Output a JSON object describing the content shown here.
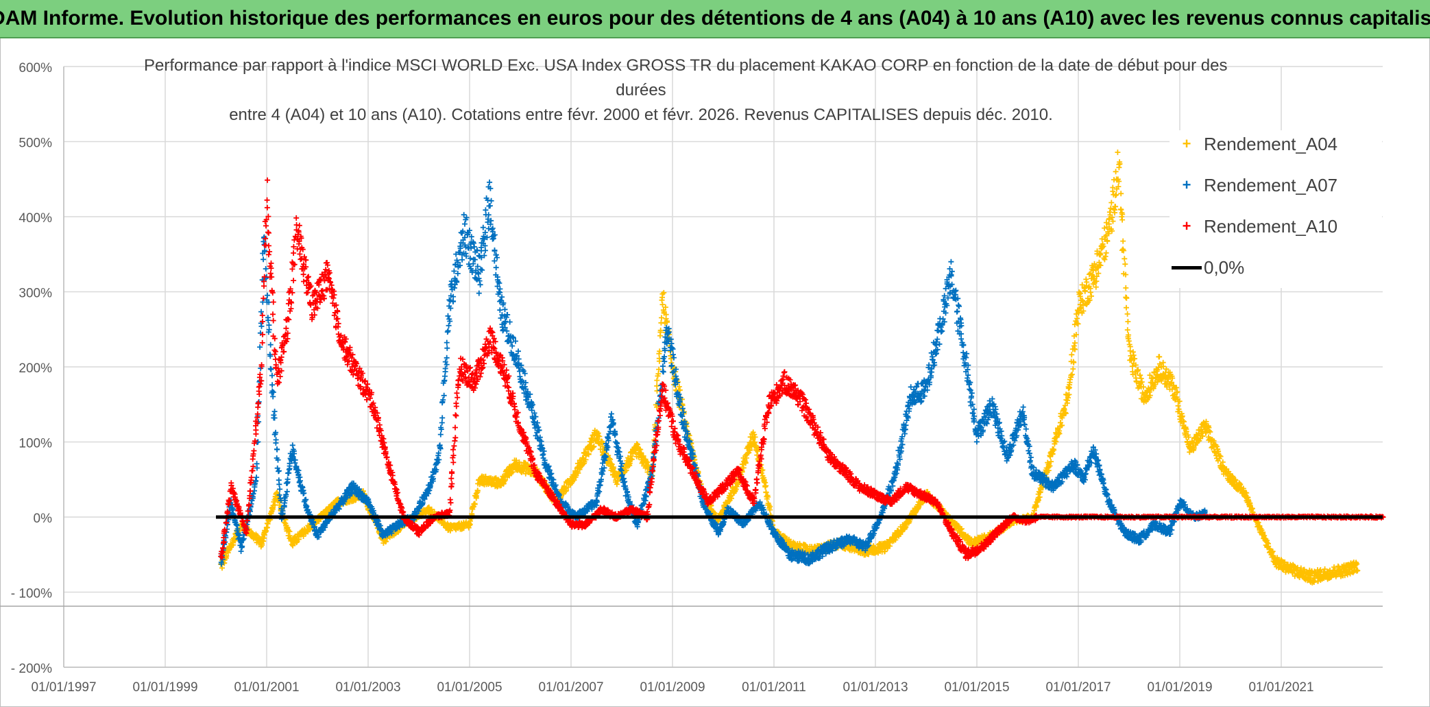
{
  "banner": {
    "title": "ADAM Informe. Evolution historique des performances en euros pour des détentions de 4 ans (A04) à 10 ans (A10) avec les revenus connus capitalisés"
  },
  "colors": {
    "banner_bg": "#7ccf7f",
    "a04": "#ffc000",
    "a07": "#0070c0",
    "a10": "#ff0000",
    "zero": "#000000",
    "grid": "#d9d9d9"
  },
  "chart_data": {
    "type": "scatter",
    "title_lines": [
      "Performance par rapport à l'indice MSCI WORLD Exc. USA Index GROSS TR  du placement KAKAO CORP en fonction de la date de début pour des",
      "durées",
      "entre 4 (A04) et 10 ans (A10). Cotations entre févr. 2000 et févr. 2026. Revenus CAPITALISES depuis déc. 2010."
    ],
    "x_tick_labels": [
      "01/01/1997",
      "01/01/1999",
      "01/01/2001",
      "01/01/2003",
      "01/01/2005",
      "01/01/2007",
      "01/01/2009",
      "01/01/2011",
      "01/01/2013",
      "01/01/2015",
      "01/01/2017",
      "01/01/2019",
      "01/01/2021"
    ],
    "x_range": [
      1997.0,
      2023.0
    ],
    "y_tick_labels": [
      "600%",
      "500%",
      "400%",
      "300%",
      "200%",
      "100%",
      "0%",
      "- 100%",
      "- 200%"
    ],
    "ylim": [
      -200,
      600
    ],
    "legend": [
      {
        "name": "Rendement_A04",
        "marker": "+"
      },
      {
        "name": "Rendement_A07",
        "marker": "+"
      },
      {
        "name": "Rendement_A10",
        "marker": "+"
      },
      {
        "name": "0,0%",
        "marker": "line"
      }
    ],
    "zero_line": {
      "label": "0,0%",
      "x_start": 2000.0,
      "x_end": 2023.0,
      "value": 0
    },
    "series": [
      {
        "name": "Rendement_A04",
        "anchors": [
          [
            2000.1,
            -65
          ],
          [
            2000.5,
            -10
          ],
          [
            2000.9,
            -35
          ],
          [
            2001.2,
            30
          ],
          [
            2001.5,
            -35
          ],
          [
            2001.9,
            -10
          ],
          [
            2002.4,
            20
          ],
          [
            2002.9,
            30
          ],
          [
            2003.3,
            -30
          ],
          [
            2003.8,
            -5
          ],
          [
            2004.2,
            10
          ],
          [
            2004.6,
            -15
          ],
          [
            2005.0,
            -10
          ],
          [
            2005.2,
            50
          ],
          [
            2005.6,
            45
          ],
          [
            2005.9,
            70
          ],
          [
            2006.3,
            60
          ],
          [
            2006.7,
            20
          ],
          [
            2007.1,
            60
          ],
          [
            2007.5,
            110
          ],
          [
            2007.9,
            50
          ],
          [
            2008.3,
            90
          ],
          [
            2008.6,
            55
          ],
          [
            2008.8,
            290
          ],
          [
            2009.0,
            200
          ],
          [
            2009.3,
            110
          ],
          [
            2009.6,
            30
          ],
          [
            2009.9,
            -5
          ],
          [
            2010.3,
            50
          ],
          [
            2010.6,
            110
          ],
          [
            2010.8,
            50
          ],
          [
            2011.0,
            -20
          ],
          [
            2011.4,
            -40
          ],
          [
            2011.8,
            -45
          ],
          [
            2012.3,
            -35
          ],
          [
            2012.8,
            -45
          ],
          [
            2013.2,
            -40
          ],
          [
            2013.6,
            -10
          ],
          [
            2014.0,
            30
          ],
          [
            2014.5,
            -5
          ],
          [
            2014.9,
            -35
          ],
          [
            2015.3,
            -25
          ],
          [
            2015.7,
            -5
          ],
          [
            2016.1,
            0
          ],
          [
            2016.5,
            90
          ],
          [
            2016.8,
            160
          ],
          [
            2017.0,
            280
          ],
          [
            2017.3,
            320
          ],
          [
            2017.6,
            380
          ],
          [
            2017.8,
            470
          ],
          [
            2018.0,
            220
          ],
          [
            2018.3,
            160
          ],
          [
            2018.6,
            200
          ],
          [
            2018.9,
            170
          ],
          [
            2019.2,
            90
          ],
          [
            2019.5,
            120
          ],
          [
            2019.9,
            60
          ],
          [
            2020.3,
            30
          ],
          [
            2020.6,
            -20
          ],
          [
            2020.9,
            -60
          ],
          [
            2021.2,
            -70
          ],
          [
            2021.6,
            -80
          ],
          [
            2021.9,
            -75
          ],
          [
            2022.3,
            -70
          ],
          [
            2022.5,
            -65
          ]
        ],
        "jitter": 9
      },
      {
        "name": "Rendement_A07",
        "anchors": [
          [
            2000.1,
            -60
          ],
          [
            2000.3,
            20
          ],
          [
            2000.5,
            -40
          ],
          [
            2000.8,
            50
          ],
          [
            2000.95,
            380
          ],
          [
            2001.1,
            180
          ],
          [
            2001.3,
            -5
          ],
          [
            2001.5,
            90
          ],
          [
            2001.8,
            10
          ],
          [
            2002.0,
            -25
          ],
          [
            2002.3,
            5
          ],
          [
            2002.7,
            40
          ],
          [
            2003.0,
            20
          ],
          [
            2003.3,
            -25
          ],
          [
            2003.6,
            -10
          ],
          [
            2003.9,
            0
          ],
          [
            2004.2,
            40
          ],
          [
            2004.4,
            80
          ],
          [
            2004.6,
            280
          ],
          [
            2004.9,
            380
          ],
          [
            2005.2,
            320
          ],
          [
            2005.4,
            430
          ],
          [
            2005.6,
            280
          ],
          [
            2005.9,
            220
          ],
          [
            2006.2,
            150
          ],
          [
            2006.5,
            70
          ],
          [
            2006.8,
            20
          ],
          [
            2007.1,
            0
          ],
          [
            2007.5,
            20
          ],
          [
            2007.8,
            130
          ],
          [
            2008.1,
            30
          ],
          [
            2008.3,
            -10
          ],
          [
            2008.6,
            60
          ],
          [
            2008.9,
            250
          ],
          [
            2009.2,
            130
          ],
          [
            2009.6,
            20
          ],
          [
            2009.9,
            -20
          ],
          [
            2010.1,
            10
          ],
          [
            2010.4,
            -10
          ],
          [
            2010.7,
            20
          ],
          [
            2011.0,
            -20
          ],
          [
            2011.3,
            -50
          ],
          [
            2011.7,
            -55
          ],
          [
            2012.1,
            -40
          ],
          [
            2012.5,
            -30
          ],
          [
            2012.8,
            -40
          ],
          [
            2013.1,
            0
          ],
          [
            2013.4,
            60
          ],
          [
            2013.7,
            160
          ],
          [
            2014.0,
            170
          ],
          [
            2014.3,
            260
          ],
          [
            2014.5,
            320
          ],
          [
            2014.8,
            200
          ],
          [
            2015.0,
            110
          ],
          [
            2015.3,
            150
          ],
          [
            2015.6,
            80
          ],
          [
            2015.9,
            140
          ],
          [
            2016.1,
            60
          ],
          [
            2016.5,
            40
          ],
          [
            2016.9,
            70
          ],
          [
            2017.1,
            50
          ],
          [
            2017.3,
            90
          ],
          [
            2017.6,
            20
          ],
          [
            2017.9,
            -20
          ],
          [
            2018.2,
            -30
          ],
          [
            2018.5,
            -10
          ],
          [
            2018.8,
            -20
          ],
          [
            2019.0,
            20
          ],
          [
            2019.3,
            0
          ],
          [
            2019.5,
            5
          ]
        ],
        "jitter": 10
      },
      {
        "name": "Rendement_A10",
        "anchors": [
          [
            2000.1,
            -55
          ],
          [
            2000.3,
            40
          ],
          [
            2000.6,
            -20
          ],
          [
            2000.9,
            200
          ],
          [
            2001.0,
            430
          ],
          [
            2001.2,
            180
          ],
          [
            2001.4,
            250
          ],
          [
            2001.6,
            380
          ],
          [
            2001.9,
            280
          ],
          [
            2002.2,
            320
          ],
          [
            2002.5,
            230
          ],
          [
            2002.8,
            190
          ],
          [
            2003.1,
            150
          ],
          [
            2003.4,
            70
          ],
          [
            2003.7,
            0
          ],
          [
            2004.0,
            -20
          ],
          [
            2004.3,
            0
          ],
          [
            2004.6,
            5
          ],
          [
            2004.8,
            200
          ],
          [
            2005.1,
            180
          ],
          [
            2005.4,
            240
          ],
          [
            2005.7,
            190
          ],
          [
            2006.0,
            120
          ],
          [
            2006.3,
            60
          ],
          [
            2006.6,
            30
          ],
          [
            2007.0,
            -10
          ],
          [
            2007.3,
            -10
          ],
          [
            2007.6,
            10
          ],
          [
            2007.9,
            0
          ],
          [
            2008.2,
            10
          ],
          [
            2008.5,
            0
          ],
          [
            2008.8,
            170
          ],
          [
            2009.1,
            100
          ],
          [
            2009.4,
            60
          ],
          [
            2009.7,
            20
          ],
          [
            2010.0,
            40
          ],
          [
            2010.3,
            60
          ],
          [
            2010.6,
            20
          ],
          [
            2010.9,
            150
          ],
          [
            2011.2,
            180
          ],
          [
            2011.5,
            160
          ],
          [
            2011.8,
            120
          ],
          [
            2012.1,
            80
          ],
          [
            2012.4,
            60
          ],
          [
            2012.7,
            40
          ],
          [
            2013.0,
            30
          ],
          [
            2013.3,
            20
          ],
          [
            2013.6,
            40
          ],
          [
            2013.9,
            30
          ],
          [
            2014.2,
            20
          ],
          [
            2014.5,
            -20
          ],
          [
            2014.8,
            -50
          ],
          [
            2015.1,
            -40
          ],
          [
            2015.4,
            -20
          ],
          [
            2015.7,
            0
          ],
          [
            2016.0,
            -5
          ],
          [
            2016.2,
            0
          ],
          [
            2023.0,
            0
          ]
        ],
        "jitter": 9
      }
    ]
  }
}
